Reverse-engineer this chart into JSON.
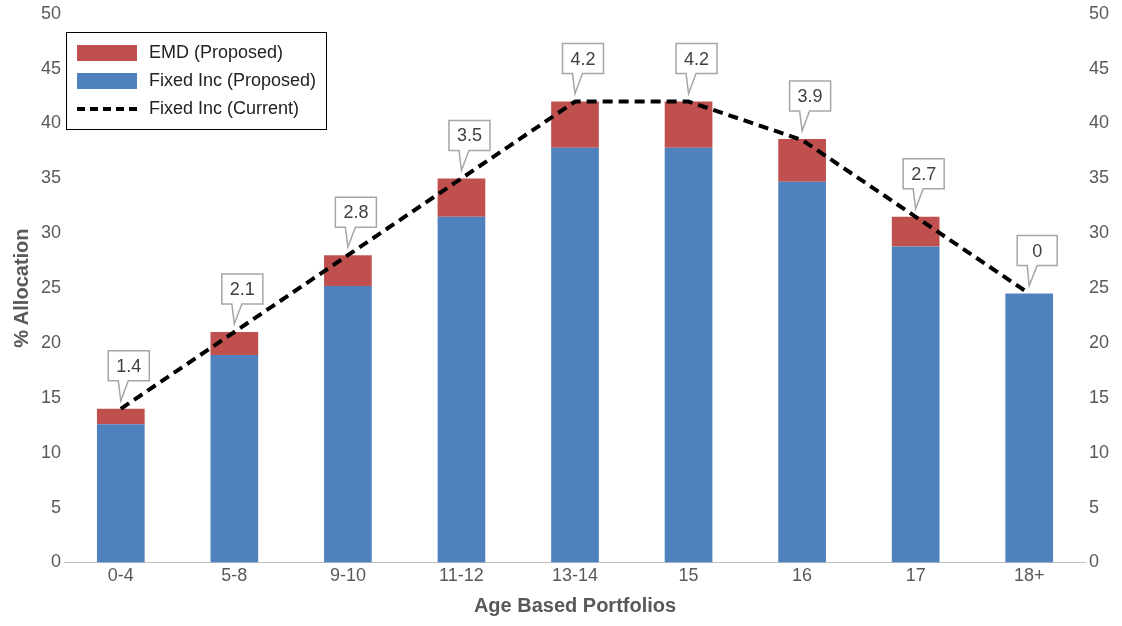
{
  "chart_data": {
    "type": "bar",
    "stacked": true,
    "xlabel": "Age Based Portfolios",
    "ylabel": "% Allocation",
    "categories": [
      "0-4",
      "5-8",
      "9-10",
      "11-12",
      "13-14",
      "15",
      "16",
      "17",
      "18+"
    ],
    "series": [
      {
        "name": "Fixed Inc (Proposed)",
        "color": "#4f81bd",
        "values": [
          12.6,
          18.9,
          25.2,
          31.5,
          37.8,
          37.8,
          34.7,
          28.8,
          24.5
        ]
      },
      {
        "name": "EMD (Proposed)",
        "color": "#c0504d",
        "values": [
          1.4,
          2.1,
          2.8,
          3.5,
          4.2,
          4.2,
          3.9,
          2.7,
          0
        ],
        "value_labels": [
          "1.4",
          "2.1",
          "2.8",
          "3.5",
          "4.2",
          "4.2",
          "3.9",
          "2.7",
          "0"
        ]
      },
      {
        "name": "Fixed Inc (Current)",
        "type": "line",
        "color": "#000000",
        "line_style": "dashed",
        "marker": "none",
        "values": [
          14,
          21,
          28,
          35,
          42,
          42,
          38.5,
          31.5,
          24.5
        ]
      }
    ],
    "ylim": [
      0,
      50
    ],
    "yticks": [
      0,
      5,
      10,
      15,
      20,
      25,
      30,
      35,
      40,
      45,
      50
    ],
    "y2lim": [
      0,
      50
    ],
    "y2ticks": [
      0,
      5,
      10,
      15,
      20,
      25,
      30,
      35,
      40,
      45,
      50
    ],
    "grid": false,
    "legend": "top left"
  }
}
